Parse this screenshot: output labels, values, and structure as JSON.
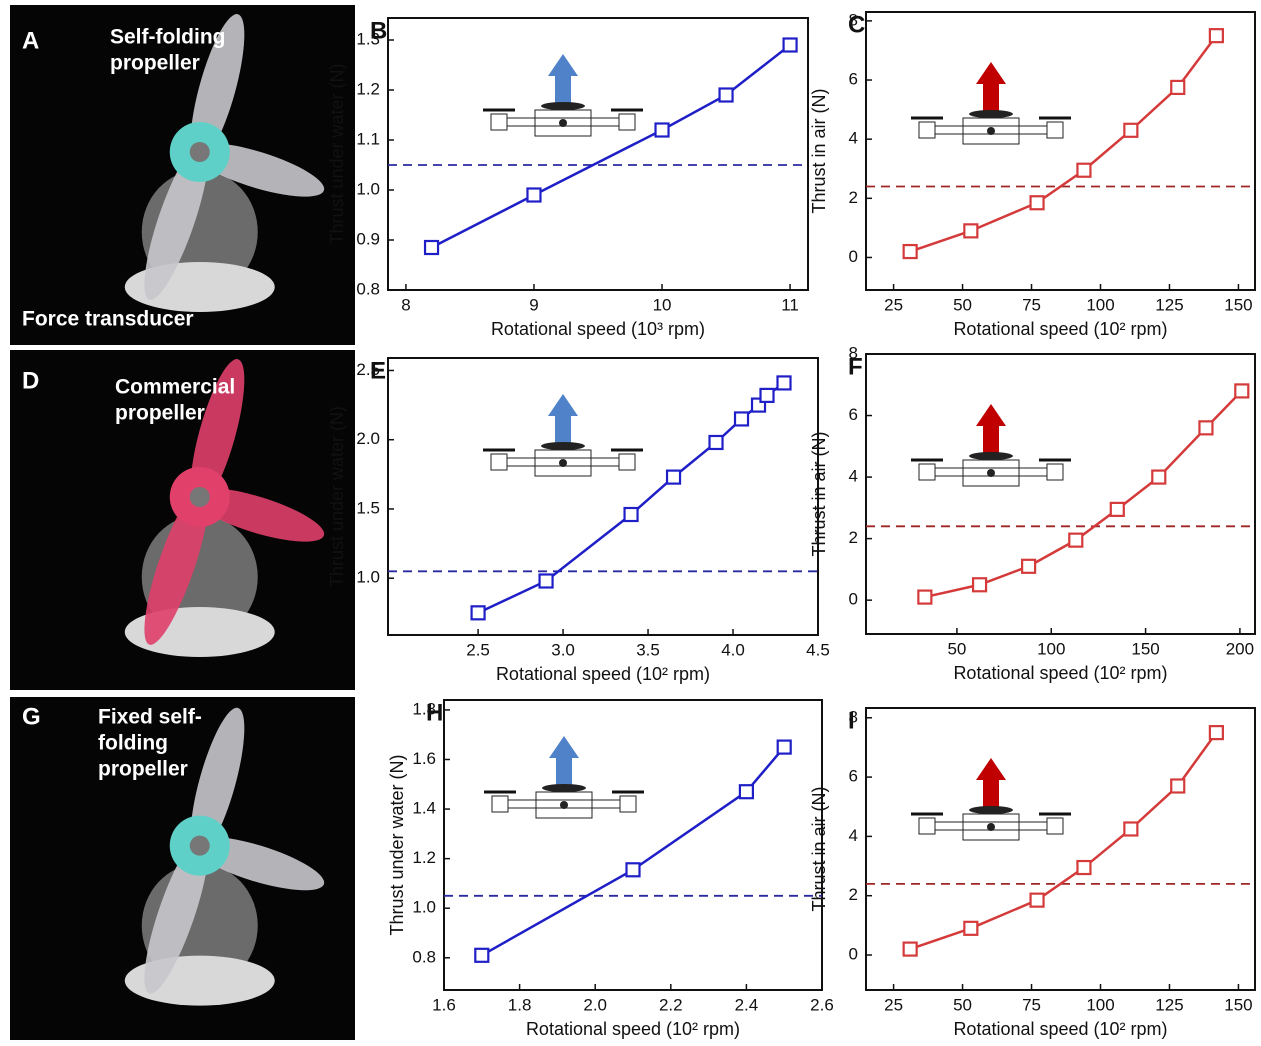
{
  "panels": [
    {
      "label": "A",
      "annotations": [
        [
          "Self-folding",
          "propeller"
        ],
        [
          "Force transducer"
        ]
      ]
    },
    {
      "label": "D",
      "annotations": [
        [
          "Commercial",
          "propeller"
        ]
      ]
    },
    {
      "label": "G",
      "annotations": [
        [
          "Fixed self-",
          "folding",
          "propeller"
        ]
      ]
    }
  ],
  "chart_data": [
    {
      "type": "line",
      "panel_label": "B",
      "x_label": "Rotational  speed (10³ rpm)",
      "y_label": "Thrust under water (N)",
      "x": [
        8.2,
        9,
        10,
        10.5,
        11
      ],
      "values": [
        0.885,
        0.99,
        1.12,
        1.19,
        1.29
      ],
      "color": "#1f1fc8",
      "xlim": [
        7.86,
        11.14
      ],
      "ylim": [
        0.8,
        1.344
      ],
      "xticks": [
        8,
        9,
        10,
        11
      ],
      "yticks": [
        0.8,
        0.9,
        {
          "value": 1,
          "label": "1.0"
        },
        1.1,
        1.2,
        1.3
      ],
      "reference_line": 1.05,
      "reference_color": "#2a2aa0"
    },
    {
      "type": "line",
      "panel_label": "C",
      "x_label": "Rotational speed (10² rpm)",
      "y_label": "Thrust in air (N)",
      "x": [
        31,
        53,
        77,
        94,
        111,
        128,
        142
      ],
      "values": [
        0.2,
        0.9,
        1.85,
        2.95,
        4.3,
        5.75,
        7.5
      ],
      "color": "#d53a3a",
      "xlim": [
        15,
        156
      ],
      "ylim": [
        -1.1,
        8.3
      ],
      "xticks": [
        25,
        50,
        75,
        100,
        125,
        150
      ],
      "yticks": [
        0,
        2,
        4,
        6,
        8
      ],
      "reference_line": 2.4,
      "reference_color": "#a02525"
    },
    {
      "type": "line",
      "panel_label": "E",
      "x_label": "Rotational speed (10² rpm)",
      "y_label": "Thrust under water (N)",
      "x": [
        2.5,
        2.9,
        3.4,
        3.65,
        3.9,
        4.05,
        4.15,
        4.2,
        4.3
      ],
      "values": [
        0.75,
        0.98,
        1.46,
        1.73,
        1.98,
        2.15,
        2.25,
        2.32,
        2.41
      ],
      "color": "#1f1fc8",
      "xlim": [
        1.97,
        4.5
      ],
      "ylim": [
        0.59,
        2.59
      ],
      "xticks": [
        2.5,
        {
          "value": 3,
          "label": "3.0"
        },
        3.5,
        {
          "value": 4,
          "label": "4.0"
        },
        4.5
      ],
      "yticks": [
        {
          "value": 1,
          "label": "1.0"
        },
        1.5,
        {
          "value": 2,
          "label": "2.0"
        },
        2.5
      ],
      "reference_line": 1.05,
      "reference_color": "#2a2aa0"
    },
    {
      "type": "line",
      "panel_label": "F",
      "x_label": "Rotational speed (10² rpm)",
      "y_label": "Thrust in air (N)",
      "x": [
        33,
        62,
        88,
        113,
        135,
        157,
        182,
        201
      ],
      "values": [
        0.1,
        0.5,
        1.1,
        1.95,
        2.95,
        4.0,
        5.6,
        6.8
      ],
      "color": "#d53a3a",
      "xlim": [
        1.8,
        208
      ],
      "ylim": [
        -1.1,
        8
      ],
      "xticks": [
        50,
        100,
        150,
        200
      ],
      "yticks": [
        0,
        2,
        4,
        6,
        8
      ],
      "reference_line": 2.4,
      "reference_color": "#a02525"
    },
    {
      "type": "line",
      "panel_label": "H",
      "x_label": "Rotational  speed (10² rpm)",
      "y_label": "Thrust under water (N)",
      "x": [
        1.7,
        2.1,
        2.4,
        2.5
      ],
      "values": [
        0.81,
        1.155,
        1.47,
        1.65
      ],
      "color": "#1f1fc8",
      "xlim": [
        1.6,
        2.6
      ],
      "ylim": [
        0.67,
        1.84
      ],
      "xticks": [
        1.6,
        1.8,
        {
          "value": 2,
          "label": "2.0"
        },
        2.2,
        2.4,
        2.6
      ],
      "yticks": [
        0.8,
        {
          "value": 1,
          "label": "1.0"
        },
        1.2,
        1.4,
        1.6,
        1.8
      ],
      "reference_line": 1.05,
      "reference_color": "#2a2aa0"
    },
    {
      "type": "line",
      "panel_label": "I",
      "x_label": "Rotational speed (10² rpm)",
      "y_label": "Thrust in air (N)",
      "x": [
        31,
        53,
        77,
        94,
        111,
        128,
        142
      ],
      "values": [
        0.2,
        0.9,
        1.85,
        2.95,
        4.25,
        5.7,
        7.5
      ],
      "color": "#d53a3a",
      "xlim": [
        15,
        156
      ],
      "ylim": [
        -1.18,
        8.33
      ],
      "xticks": [
        25,
        50,
        75,
        100,
        125,
        150
      ],
      "yticks": [
        0,
        2,
        4,
        6,
        8
      ],
      "reference_line": 2.4,
      "reference_color": "#a02525"
    }
  ]
}
